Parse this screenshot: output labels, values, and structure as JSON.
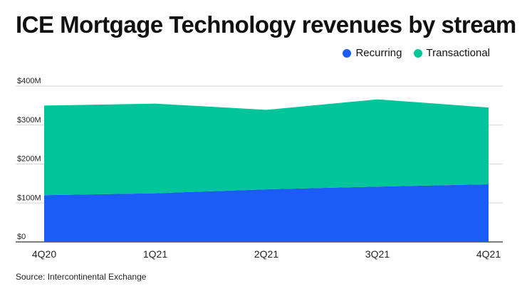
{
  "title": "ICE Mortgage Technology revenues by stream",
  "source": "Source: Intercontinental Exchange",
  "legend": [
    {
      "label": "Recurring",
      "color": "#1a5cf5"
    },
    {
      "label": "Transactional",
      "color": "#00c49a"
    }
  ],
  "chart_data": {
    "type": "area",
    "stacked": true,
    "title": "ICE Mortgage Technology revenues by stream",
    "categories": [
      "4Q20",
      "1Q21",
      "2Q21",
      "3Q21",
      "4Q21"
    ],
    "series": [
      {
        "name": "Recurring",
        "color": "#1a5cf5",
        "values": [
          120,
          125,
          135,
          142,
          148
        ]
      },
      {
        "name": "Transactional",
        "color": "#00c49a",
        "values": [
          230,
          230,
          204,
          224,
          197
        ]
      }
    ],
    "ylim": [
      0,
      400
    ],
    "yticks": [
      0,
      100,
      200,
      300,
      400
    ],
    "ytick_labels": [
      "$0",
      "$100M",
      "$200M",
      "$300M",
      "$400M"
    ],
    "xlabel": "",
    "ylabel": "",
    "grid": true,
    "legend_position": "top-right"
  }
}
